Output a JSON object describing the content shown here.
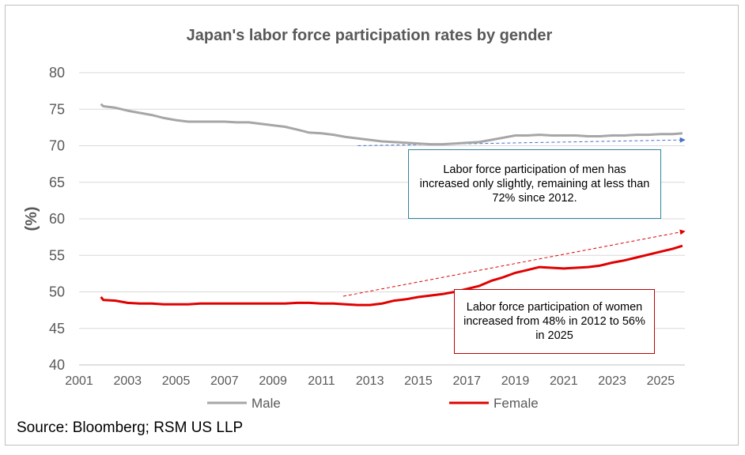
{
  "chart_data": {
    "type": "line",
    "title": "Japan's labor force participation rates by gender",
    "xlabel": "",
    "ylabel": "(%)",
    "xlim": [
      2001,
      2026
    ],
    "ylim": [
      40,
      80
    ],
    "x_ticks": [
      "2001",
      "2003",
      "2005",
      "2007",
      "2009",
      "2011",
      "2013",
      "2015",
      "2017",
      "2019",
      "2021",
      "2023",
      "2025"
    ],
    "y_ticks": [
      "40",
      "45",
      "50",
      "55",
      "60",
      "65",
      "70",
      "75",
      "80"
    ],
    "grid": "horizontal",
    "legend_position": "bottom",
    "series": [
      {
        "name": "Male",
        "color": "#a6a6a6",
        "points": [
          [
            2001.9,
            75.7
          ],
          [
            2002.0,
            75.4
          ],
          [
            2002.5,
            75.2
          ],
          [
            2003.0,
            74.8
          ],
          [
            2003.5,
            74.5
          ],
          [
            2004.0,
            74.2
          ],
          [
            2004.5,
            73.8
          ],
          [
            2005.0,
            73.5
          ],
          [
            2005.5,
            73.3
          ],
          [
            2006.0,
            73.3
          ],
          [
            2006.5,
            73.3
          ],
          [
            2007.0,
            73.3
          ],
          [
            2007.5,
            73.2
          ],
          [
            2008.0,
            73.2
          ],
          [
            2008.5,
            73.0
          ],
          [
            2009.0,
            72.8
          ],
          [
            2009.5,
            72.6
          ],
          [
            2010.0,
            72.2
          ],
          [
            2010.5,
            71.8
          ],
          [
            2011.0,
            71.7
          ],
          [
            2011.5,
            71.5
          ],
          [
            2012.0,
            71.2
          ],
          [
            2012.5,
            71.0
          ],
          [
            2013.0,
            70.8
          ],
          [
            2013.5,
            70.6
          ],
          [
            2014.0,
            70.5
          ],
          [
            2014.5,
            70.4
          ],
          [
            2015.0,
            70.3
          ],
          [
            2015.5,
            70.2
          ],
          [
            2016.0,
            70.2
          ],
          [
            2016.5,
            70.3
          ],
          [
            2017.0,
            70.4
          ],
          [
            2017.5,
            70.5
          ],
          [
            2018.0,
            70.8
          ],
          [
            2018.5,
            71.1
          ],
          [
            2019.0,
            71.4
          ],
          [
            2019.5,
            71.4
          ],
          [
            2020.0,
            71.5
          ],
          [
            2020.5,
            71.4
          ],
          [
            2021.0,
            71.4
          ],
          [
            2021.5,
            71.4
          ],
          [
            2022.0,
            71.3
          ],
          [
            2022.5,
            71.3
          ],
          [
            2023.0,
            71.4
          ],
          [
            2023.5,
            71.4
          ],
          [
            2024.0,
            71.5
          ],
          [
            2024.5,
            71.5
          ],
          [
            2025.0,
            71.6
          ],
          [
            2025.5,
            71.6
          ],
          [
            2025.9,
            71.7
          ]
        ]
      },
      {
        "name": "Female",
        "color": "#e00000",
        "points": [
          [
            2001.9,
            49.3
          ],
          [
            2002.0,
            48.9
          ],
          [
            2002.5,
            48.8
          ],
          [
            2003.0,
            48.5
          ],
          [
            2003.5,
            48.4
          ],
          [
            2004.0,
            48.4
          ],
          [
            2004.5,
            48.3
          ],
          [
            2005.0,
            48.3
          ],
          [
            2005.5,
            48.3
          ],
          [
            2006.0,
            48.4
          ],
          [
            2006.5,
            48.4
          ],
          [
            2007.0,
            48.4
          ],
          [
            2007.5,
            48.4
          ],
          [
            2008.0,
            48.4
          ],
          [
            2008.5,
            48.4
          ],
          [
            2009.0,
            48.4
          ],
          [
            2009.5,
            48.4
          ],
          [
            2010.0,
            48.5
          ],
          [
            2010.5,
            48.5
          ],
          [
            2011.0,
            48.4
          ],
          [
            2011.5,
            48.4
          ],
          [
            2012.0,
            48.3
          ],
          [
            2012.5,
            48.2
          ],
          [
            2013.0,
            48.2
          ],
          [
            2013.5,
            48.4
          ],
          [
            2014.0,
            48.8
          ],
          [
            2014.5,
            49.0
          ],
          [
            2015.0,
            49.3
          ],
          [
            2015.5,
            49.5
          ],
          [
            2016.0,
            49.7
          ],
          [
            2016.5,
            50.0
          ],
          [
            2017.0,
            50.4
          ],
          [
            2017.5,
            50.8
          ],
          [
            2018.0,
            51.5
          ],
          [
            2018.5,
            52.0
          ],
          [
            2019.0,
            52.6
          ],
          [
            2019.5,
            53.0
          ],
          [
            2020.0,
            53.4
          ],
          [
            2020.5,
            53.3
          ],
          [
            2021.0,
            53.2
          ],
          [
            2021.5,
            53.3
          ],
          [
            2022.0,
            53.4
          ],
          [
            2022.5,
            53.6
          ],
          [
            2023.0,
            54.0
          ],
          [
            2023.5,
            54.3
          ],
          [
            2024.0,
            54.7
          ],
          [
            2024.5,
            55.1
          ],
          [
            2025.0,
            55.5
          ],
          [
            2025.5,
            55.9
          ],
          [
            2025.9,
            56.3
          ]
        ]
      }
    ],
    "trend_arrows": [
      {
        "name": "male-trend-arrow",
        "color": "#4472c4",
        "from": [
          2012.5,
          70.0
        ],
        "to": [
          2026.0,
          70.8
        ]
      },
      {
        "name": "female-trend-arrow",
        "color": "#e00000",
        "from": [
          2011.9,
          49.4
        ],
        "to": [
          2026.0,
          58.3
        ]
      }
    ],
    "annotations": {
      "men": "Labor force participation of men has increased only slightly, remaining at less than 72% since 2012.",
      "women": "Labor force participation of women increased from 48% in 2012 to 56% in 2025"
    }
  },
  "source": "Source: Bloomberg; RSM US LLP"
}
